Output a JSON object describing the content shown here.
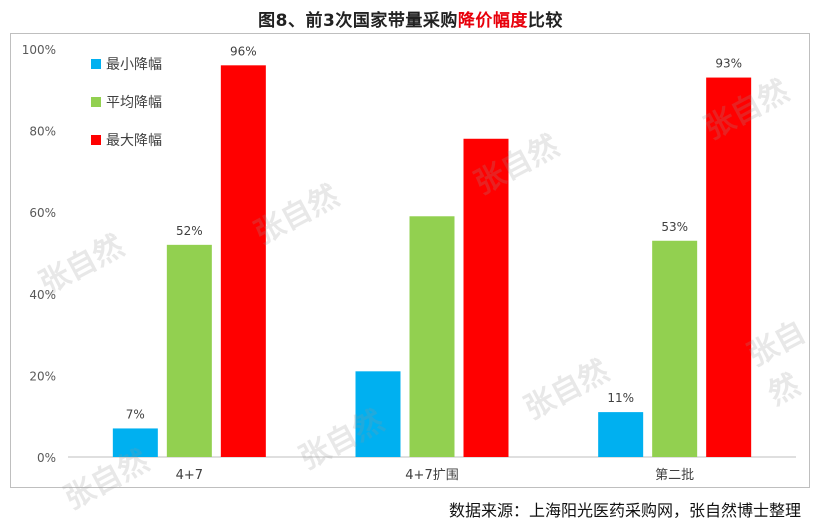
{
  "title": {
    "prefix": "图8、前3次国家带量采购",
    "highlight": "降价幅度",
    "suffix": "比较"
  },
  "source": "数据来源：上海阳光医药采购网，张自然博士整理",
  "watermark": "张自然",
  "colors": {
    "min": "#00b0f0",
    "avg": "#92d050",
    "max": "#ff0000",
    "highlight": "#e8000b"
  },
  "chart_data": {
    "type": "bar",
    "categories": [
      "4+7",
      "4+7扩围",
      "第二批"
    ],
    "series": [
      {
        "name": "最小降幅",
        "values": [
          7,
          21,
          11
        ],
        "labels": [
          "7%",
          "",
          "11%"
        ],
        "color": "#00b0f0"
      },
      {
        "name": "平均降幅",
        "values": [
          52,
          59,
          53
        ],
        "labels": [
          "52%",
          "",
          "53%"
        ],
        "color": "#92d050"
      },
      {
        "name": "最大降幅",
        "values": [
          96,
          78,
          93
        ],
        "labels": [
          "96%",
          "",
          "93%"
        ],
        "color": "#ff0000"
      }
    ],
    "ylim": [
      0,
      100
    ],
    "yticks": [
      "0%",
      "20%",
      "40%",
      "60%",
      "80%",
      "100%"
    ],
    "ytick_values": [
      0,
      20,
      40,
      60,
      80,
      100
    ],
    "grid": false,
    "legend": "top-left"
  }
}
